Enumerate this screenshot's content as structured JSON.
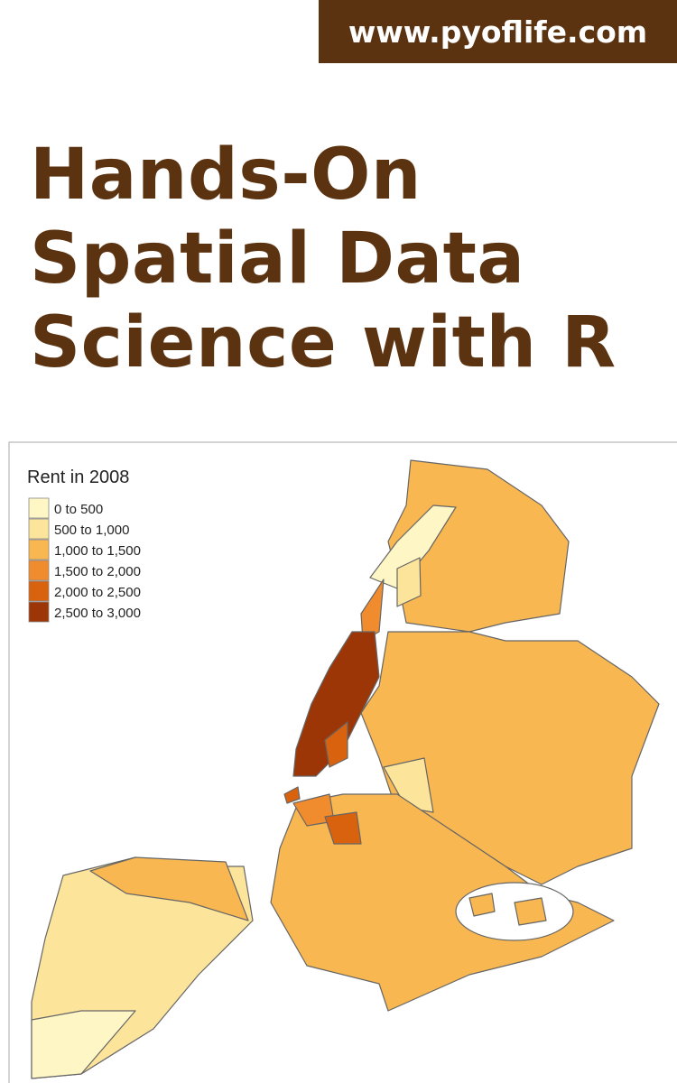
{
  "header": {
    "url": "www.pyoflife.com"
  },
  "title": {
    "lines": [
      "Hands-On",
      "Spatial Data",
      "Science with R"
    ]
  },
  "map": {
    "legend_title": "Rent in 2008",
    "legend": [
      {
        "label": "0 to 500",
        "color": "#fef6c4"
      },
      {
        "label": "500 to 1,000",
        "color": "#fde49b"
      },
      {
        "label": "1,000 to 1,500",
        "color": "#f8b750"
      },
      {
        "label": "1,500 to 2,000",
        "color": "#f08c2e"
      },
      {
        "label": "2,000 to 2,500",
        "color": "#d9620f"
      },
      {
        "label": "2,500 to 3,000",
        "color": "#9c3607"
      }
    ]
  }
}
